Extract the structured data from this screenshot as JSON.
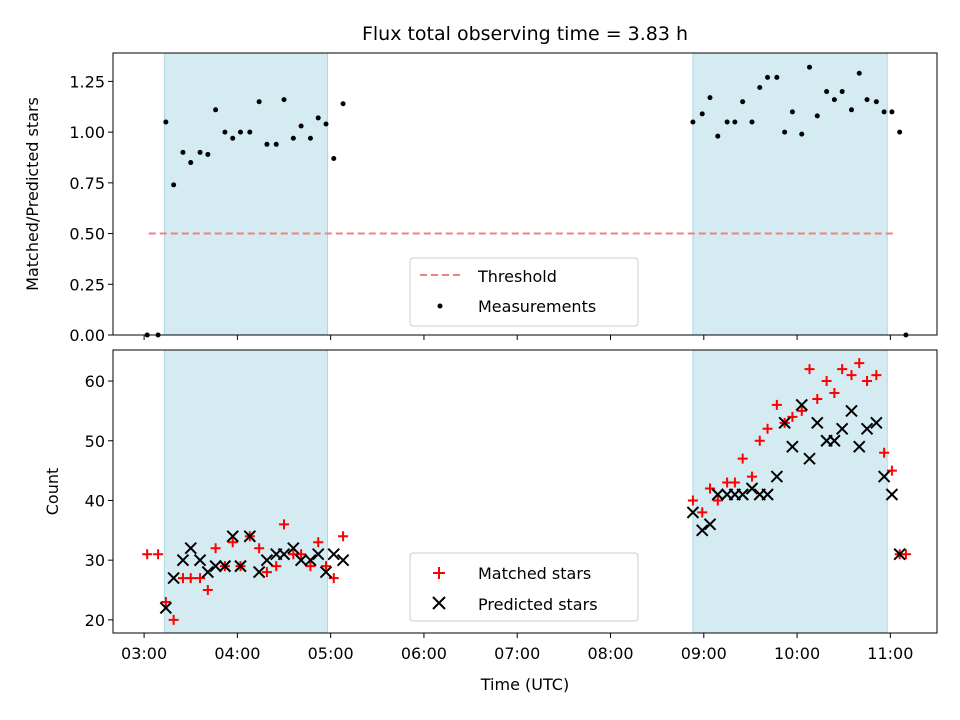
{
  "chart_data": [
    {
      "type": "scatter",
      "title": "Flux total observing time = 3.83 h",
      "xlabel": "",
      "ylabel": "Matched/Predicted stars",
      "ylim": [
        0.0,
        1.39
      ],
      "yticks": [
        "0.00",
        "0.25",
        "0.50",
        "0.75",
        "1.00",
        "1.25"
      ],
      "shaded_intervals": [
        [
          "03:13",
          "04:58"
        ],
        [
          "08:53",
          "10:58"
        ]
      ],
      "shade_color": "#d4ebf2",
      "threshold": {
        "name": "Threshold",
        "value": 0.5,
        "x_range": [
          "03:03",
          "11:03"
        ],
        "color": "#f08080"
      },
      "series": [
        {
          "name": "Measurements",
          "color": "#000000",
          "points": [
            [
              "03:02",
              0.0
            ],
            [
              "03:09",
              0.0
            ],
            [
              "03:14",
              1.05
            ],
            [
              "03:19",
              0.74
            ],
            [
              "03:25",
              0.9
            ],
            [
              "03:30",
              0.85
            ],
            [
              "03:36",
              0.9
            ],
            [
              "03:41",
              0.89
            ],
            [
              "03:46",
              1.11
            ],
            [
              "03:52",
              1.0
            ],
            [
              "03:57",
              0.97
            ],
            [
              "04:02",
              1.0
            ],
            [
              "04:08",
              1.0
            ],
            [
              "04:14",
              1.15
            ],
            [
              "04:19",
              0.94
            ],
            [
              "04:25",
              0.94
            ],
            [
              "04:30",
              1.16
            ],
            [
              "04:36",
              0.97
            ],
            [
              "04:41",
              1.03
            ],
            [
              "04:47",
              0.97
            ],
            [
              "04:52",
              1.07
            ],
            [
              "04:57",
              1.04
            ],
            [
              "05:02",
              0.87
            ],
            [
              "05:08",
              1.14
            ],
            [
              "08:53",
              1.05
            ],
            [
              "08:59",
              1.09
            ],
            [
              "09:04",
              1.17
            ],
            [
              "09:09",
              0.98
            ],
            [
              "09:15",
              1.05
            ],
            [
              "09:20",
              1.05
            ],
            [
              "09:25",
              1.15
            ],
            [
              "09:31",
              1.05
            ],
            [
              "09:36",
              1.22
            ],
            [
              "09:41",
              1.27
            ],
            [
              "09:47",
              1.27
            ],
            [
              "09:52",
              1.0
            ],
            [
              "09:57",
              1.1
            ],
            [
              "10:03",
              0.99
            ],
            [
              "10:08",
              1.32
            ],
            [
              "10:13",
              1.08
            ],
            [
              "10:19",
              1.2
            ],
            [
              "10:24",
              1.16
            ],
            [
              "10:29",
              1.2
            ],
            [
              "10:35",
              1.11
            ],
            [
              "10:40",
              1.29
            ],
            [
              "10:45",
              1.16
            ],
            [
              "10:51",
              1.15
            ],
            [
              "10:56",
              1.1
            ],
            [
              "11:01",
              1.1
            ],
            [
              "11:06",
              1.0
            ],
            [
              "11:10",
              0.0
            ]
          ]
        }
      ],
      "legend": {
        "placement": "lower-center",
        "entries": [
          "Threshold",
          "Measurements"
        ]
      }
    },
    {
      "type": "scatter",
      "title": "",
      "xlabel": "Time (UTC)",
      "ylabel": "Count",
      "ylim": [
        17.8,
        65.2
      ],
      "yticks": [
        "20",
        "30",
        "40",
        "50",
        "60"
      ],
      "xlim": [
        "02:40",
        "11:30"
      ],
      "xticks": [
        "03:00",
        "04:00",
        "05:00",
        "06:00",
        "07:00",
        "08:00",
        "09:00",
        "10:00",
        "11:00"
      ],
      "shaded_intervals": [
        [
          "03:13",
          "04:58"
        ],
        [
          "08:53",
          "10:58"
        ]
      ],
      "shade_color": "#d4ebf2",
      "series": [
        {
          "name": "Matched stars",
          "marker": "plus",
          "color": "#ff0000",
          "points": [
            [
              "03:02",
              31
            ],
            [
              "03:09",
              31
            ],
            [
              "03:14",
              23
            ],
            [
              "03:19",
              20
            ],
            [
              "03:25",
              27
            ],
            [
              "03:30",
              27
            ],
            [
              "03:36",
              27
            ],
            [
              "03:41",
              25
            ],
            [
              "03:46",
              32
            ],
            [
              "03:52",
              29
            ],
            [
              "03:57",
              33
            ],
            [
              "04:02",
              29
            ],
            [
              "04:08",
              34
            ],
            [
              "04:14",
              32
            ],
            [
              "04:19",
              28
            ],
            [
              "04:25",
              29
            ],
            [
              "04:30",
              36
            ],
            [
              "04:36",
              31
            ],
            [
              "04:41",
              31
            ],
            [
              "04:47",
              29
            ],
            [
              "04:52",
              33
            ],
            [
              "04:57",
              29
            ],
            [
              "05:02",
              27
            ],
            [
              "05:08",
              34
            ],
            [
              "08:53",
              40
            ],
            [
              "08:59",
              38
            ],
            [
              "09:04",
              42
            ],
            [
              "09:09",
              40
            ],
            [
              "09:15",
              43
            ],
            [
              "09:20",
              43
            ],
            [
              "09:25",
              47
            ],
            [
              "09:31",
              44
            ],
            [
              "09:36",
              50
            ],
            [
              "09:41",
              52
            ],
            [
              "09:47",
              56
            ],
            [
              "09:52",
              53
            ],
            [
              "09:57",
              54
            ],
            [
              "10:03",
              55
            ],
            [
              "10:08",
              62
            ],
            [
              "10:13",
              57
            ],
            [
              "10:19",
              60
            ],
            [
              "10:24",
              58
            ],
            [
              "10:29",
              62
            ],
            [
              "10:35",
              61
            ],
            [
              "10:40",
              63
            ],
            [
              "10:45",
              60
            ],
            [
              "10:51",
              61
            ],
            [
              "10:56",
              48
            ],
            [
              "11:01",
              45
            ],
            [
              "11:06",
              31
            ],
            [
              "11:10",
              31
            ]
          ]
        },
        {
          "name": "Predicted stars",
          "marker": "x",
          "color": "#000000",
          "points": [
            [
              "03:14",
              22
            ],
            [
              "03:19",
              27
            ],
            [
              "03:25",
              30
            ],
            [
              "03:30",
              32
            ],
            [
              "03:36",
              30
            ],
            [
              "03:41",
              28
            ],
            [
              "03:46",
              29
            ],
            [
              "03:52",
              29
            ],
            [
              "03:57",
              34
            ],
            [
              "04:02",
              29
            ],
            [
              "04:08",
              34
            ],
            [
              "04:14",
              28
            ],
            [
              "04:19",
              30
            ],
            [
              "04:25",
              31
            ],
            [
              "04:30",
              31
            ],
            [
              "04:36",
              32
            ],
            [
              "04:41",
              30
            ],
            [
              "04:47",
              30
            ],
            [
              "04:52",
              31
            ],
            [
              "04:57",
              28
            ],
            [
              "05:02",
              31
            ],
            [
              "05:08",
              30
            ],
            [
              "08:53",
              38
            ],
            [
              "08:59",
              35
            ],
            [
              "09:04",
              36
            ],
            [
              "09:09",
              41
            ],
            [
              "09:15",
              41
            ],
            [
              "09:20",
              41
            ],
            [
              "09:25",
              41
            ],
            [
              "09:31",
              42
            ],
            [
              "09:36",
              41
            ],
            [
              "09:41",
              41
            ],
            [
              "09:47",
              44
            ],
            [
              "09:52",
              53
            ],
            [
              "09:57",
              49
            ],
            [
              "10:03",
              56
            ],
            [
              "10:08",
              47
            ],
            [
              "10:13",
              53
            ],
            [
              "10:19",
              50
            ],
            [
              "10:24",
              50
            ],
            [
              "10:29",
              52
            ],
            [
              "10:35",
              55
            ],
            [
              "10:40",
              49
            ],
            [
              "10:45",
              52
            ],
            [
              "10:51",
              53
            ],
            [
              "10:56",
              44
            ],
            [
              "11:01",
              41
            ],
            [
              "11:06",
              31
            ]
          ]
        }
      ],
      "legend": {
        "placement": "lower-center",
        "entries": [
          "Matched stars",
          "Predicted stars"
        ]
      }
    }
  ]
}
